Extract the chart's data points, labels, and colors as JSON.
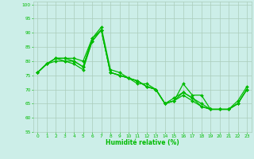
{
  "xlabel": "Humidité relative (%)",
  "xlim": [
    -0.5,
    23.5
  ],
  "ylim": [
    55,
    101
  ],
  "yticks": [
    55,
    60,
    65,
    70,
    75,
    80,
    85,
    90,
    95,
    100
  ],
  "xticks": [
    0,
    1,
    2,
    3,
    4,
    5,
    6,
    7,
    8,
    9,
    10,
    11,
    12,
    13,
    14,
    15,
    16,
    17,
    18,
    19,
    20,
    21,
    22,
    23
  ],
  "bg_color": "#cceee8",
  "grid_color": "#aaccbb",
  "line_color": "#00bb00",
  "line_width": 0.9,
  "marker": "D",
  "marker_size": 2.0,
  "series": [
    [
      76,
      79,
      81,
      81,
      81,
      80,
      88,
      92,
      77,
      76,
      74,
      72,
      72,
      70,
      65,
      66,
      72,
      68,
      68,
      63,
      63,
      63,
      66,
      71
    ],
    [
      76,
      79,
      81,
      81,
      80,
      78,
      88,
      91,
      76,
      75,
      74,
      73,
      71,
      70,
      65,
      66,
      69,
      67,
      65,
      63,
      63,
      63,
      65,
      70
    ],
    [
      76,
      79,
      81,
      80,
      80,
      78,
      87,
      91,
      76,
      75,
      74,
      73,
      71,
      70,
      65,
      67,
      69,
      67,
      64,
      63,
      63,
      63,
      65,
      70
    ],
    [
      76,
      79,
      80,
      80,
      79,
      77,
      87,
      91,
      76,
      75,
      74,
      73,
      71,
      70,
      65,
      66,
      68,
      66,
      64,
      63,
      63,
      63,
      65,
      70
    ]
  ]
}
